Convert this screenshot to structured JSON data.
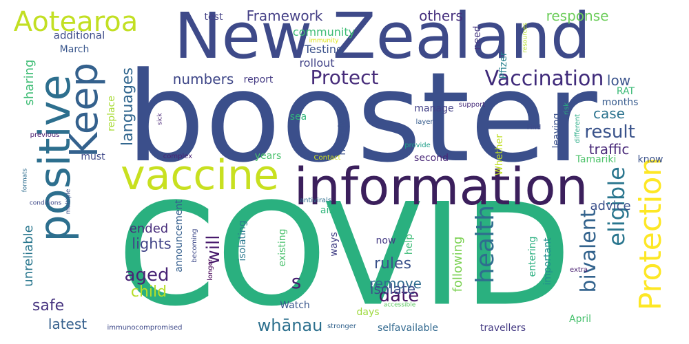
{
  "words": [
    {
      "text": "COVID",
      "color": "#2ab07f"
    },
    {
      "text": "booster",
      "color": "#3b4f8b"
    },
    {
      "text": "New Zealand",
      "color": "#3e4a89"
    },
    {
      "text": "information",
      "color": "#3b1f5c"
    },
    {
      "text": "vaccine",
      "color": "#c8e020"
    },
    {
      "text": "positive",
      "color": "#2d6f8e"
    },
    {
      "text": "Keep",
      "color": "#34618d"
    },
    {
      "text": "Aotearoa",
      "color": "#c2df23"
    },
    {
      "text": "Protection",
      "color": "#fde725"
    },
    {
      "text": "Vaccination",
      "color": "#3f2a7a"
    },
    {
      "text": "Protect",
      "color": "#472c7a"
    },
    {
      "text": "health",
      "color": "#2e6e8e"
    },
    {
      "text": "eligible",
      "color": "#2a768e"
    },
    {
      "text": "bivalent",
      "color": "#33638d"
    },
    {
      "text": "languages",
      "color": "#31668e"
    },
    {
      "text": "result",
      "color": "#3a538b"
    },
    {
      "text": "aged",
      "color": "#482475"
    },
    {
      "text": "will",
      "color": "#481a6c"
    },
    {
      "text": "rules",
      "color": "#3b528b"
    },
    {
      "text": "lights",
      "color": "#404387"
    },
    {
      "text": "numbers",
      "color": "#3f4788"
    },
    {
      "text": "Framework",
      "color": "#433e85"
    },
    {
      "text": "others",
      "color": "#46307e"
    },
    {
      "text": "response",
      "color": "#6ccd5a"
    },
    {
      "text": "traffic",
      "color": "#482878"
    },
    {
      "text": "low",
      "color": "#3a548c"
    },
    {
      "text": "case",
      "color": "#2c738e"
    },
    {
      "text": "advice",
      "color": "#3b518b"
    },
    {
      "text": "date",
      "color": "#471365"
    },
    {
      "text": "remove",
      "color": "#2f6b8e"
    },
    {
      "text": "child",
      "color": "#b8de29"
    },
    {
      "text": "safe",
      "color": "#46337f"
    },
    {
      "text": "latest",
      "color": "#35608d"
    },
    {
      "text": "whānau",
      "color": "#2d708e"
    },
    {
      "text": "following",
      "color": "#7ad151"
    },
    {
      "text": "s",
      "color": "#481f70"
    },
    {
      "text": "ended",
      "color": "#472d7b"
    },
    {
      "text": "unreliable",
      "color": "#2a778e"
    },
    {
      "text": "sharing",
      "color": "#3dbc74"
    },
    {
      "text": "community",
      "color": "#3dbc74"
    },
    {
      "text": "Testing",
      "color": "#3b518b"
    },
    {
      "text": "rollout",
      "color": "#414287"
    },
    {
      "text": "additional",
      "color": "#3e4c8a"
    },
    {
      "text": "March",
      "color": "#39568c"
    },
    {
      "text": "test",
      "color": "#423f85"
    },
    {
      "text": "report",
      "color": "#443a83"
    },
    {
      "text": "need",
      "color": "#453781"
    },
    {
      "text": "Pfizer",
      "color": "#27808e"
    },
    {
      "text": "immunity",
      "color": "#dde318"
    },
    {
      "text": "resources",
      "color": "#b5de2b"
    },
    {
      "text": "RAT",
      "color": "#3aba76"
    },
    {
      "text": "months",
      "color": "#375b8d"
    },
    {
      "text": "manage",
      "color": "#424086"
    },
    {
      "text": "leaving",
      "color": "#3b518b"
    },
    {
      "text": "risk",
      "color": "#29af7f"
    },
    {
      "text": "support",
      "color": "#472d7b"
    },
    {
      "text": "different",
      "color": "#24aa83"
    },
    {
      "text": "Find",
      "color": "#3e4989"
    },
    {
      "text": "replace",
      "color": "#a8db34"
    },
    {
      "text": "sea",
      "color": "#31b57b"
    },
    {
      "text": "negative",
      "color": "#3b518b"
    },
    {
      "text": "layer",
      "color": "#365c8d"
    },
    {
      "text": "Whether",
      "color": "#c0df25"
    },
    {
      "text": "provide",
      "color": "#1f9e89"
    },
    {
      "text": "Tamariki",
      "color": "#4ec36b"
    },
    {
      "text": "know",
      "color": "#3b528b"
    },
    {
      "text": "second",
      "color": "#482677"
    },
    {
      "text": "years",
      "color": "#4ac16d"
    },
    {
      "text": "must",
      "color": "#3f4889"
    },
    {
      "text": "Contact",
      "color": "#d2e21b"
    },
    {
      "text": "complex",
      "color": "#482173"
    },
    {
      "text": "sick",
      "color": "#482475"
    },
    {
      "text": "previous",
      "color": "#481b6d"
    },
    {
      "text": "formats",
      "color": "#2e6d8e"
    },
    {
      "text": "conditions",
      "color": "#3e4989"
    },
    {
      "text": "multiple",
      "color": "#3b528b"
    },
    {
      "text": "antivirals",
      "color": "#2e6e8e"
    },
    {
      "text": "air",
      "color": "#31b57b"
    },
    {
      "text": "announcement",
      "color": "#355f8d"
    },
    {
      "text": "isolating",
      "color": "#2a788e"
    },
    {
      "text": "existing",
      "color": "#4ac16d"
    },
    {
      "text": "ways",
      "color": "#424086"
    },
    {
      "text": "isolate",
      "color": "#3d4e8a"
    },
    {
      "text": "now",
      "color": "#443983"
    },
    {
      "text": "help",
      "color": "#3bbb75"
    },
    {
      "text": "entering",
      "color": "#29af7f"
    },
    {
      "text": "important",
      "color": "#218f8d"
    },
    {
      "text": "extra",
      "color": "#481f70"
    },
    {
      "text": "becoming",
      "color": "#3e4989"
    },
    {
      "text": "longer",
      "color": "#440154"
    },
    {
      "text": "Watch",
      "color": "#39568c"
    },
    {
      "text": "days",
      "color": "#9dd93b"
    },
    {
      "text": "accessible",
      "color": "#5ec962"
    },
    {
      "text": "stronger",
      "color": "#33638d"
    },
    {
      "text": "selfavailable",
      "color": "#31688e"
    },
    {
      "text": "travellers",
      "color": "#443a83"
    },
    {
      "text": "April",
      "color": "#48c16e"
    },
    {
      "text": "immunocompromised",
      "color": "#3e4989"
    }
  ]
}
